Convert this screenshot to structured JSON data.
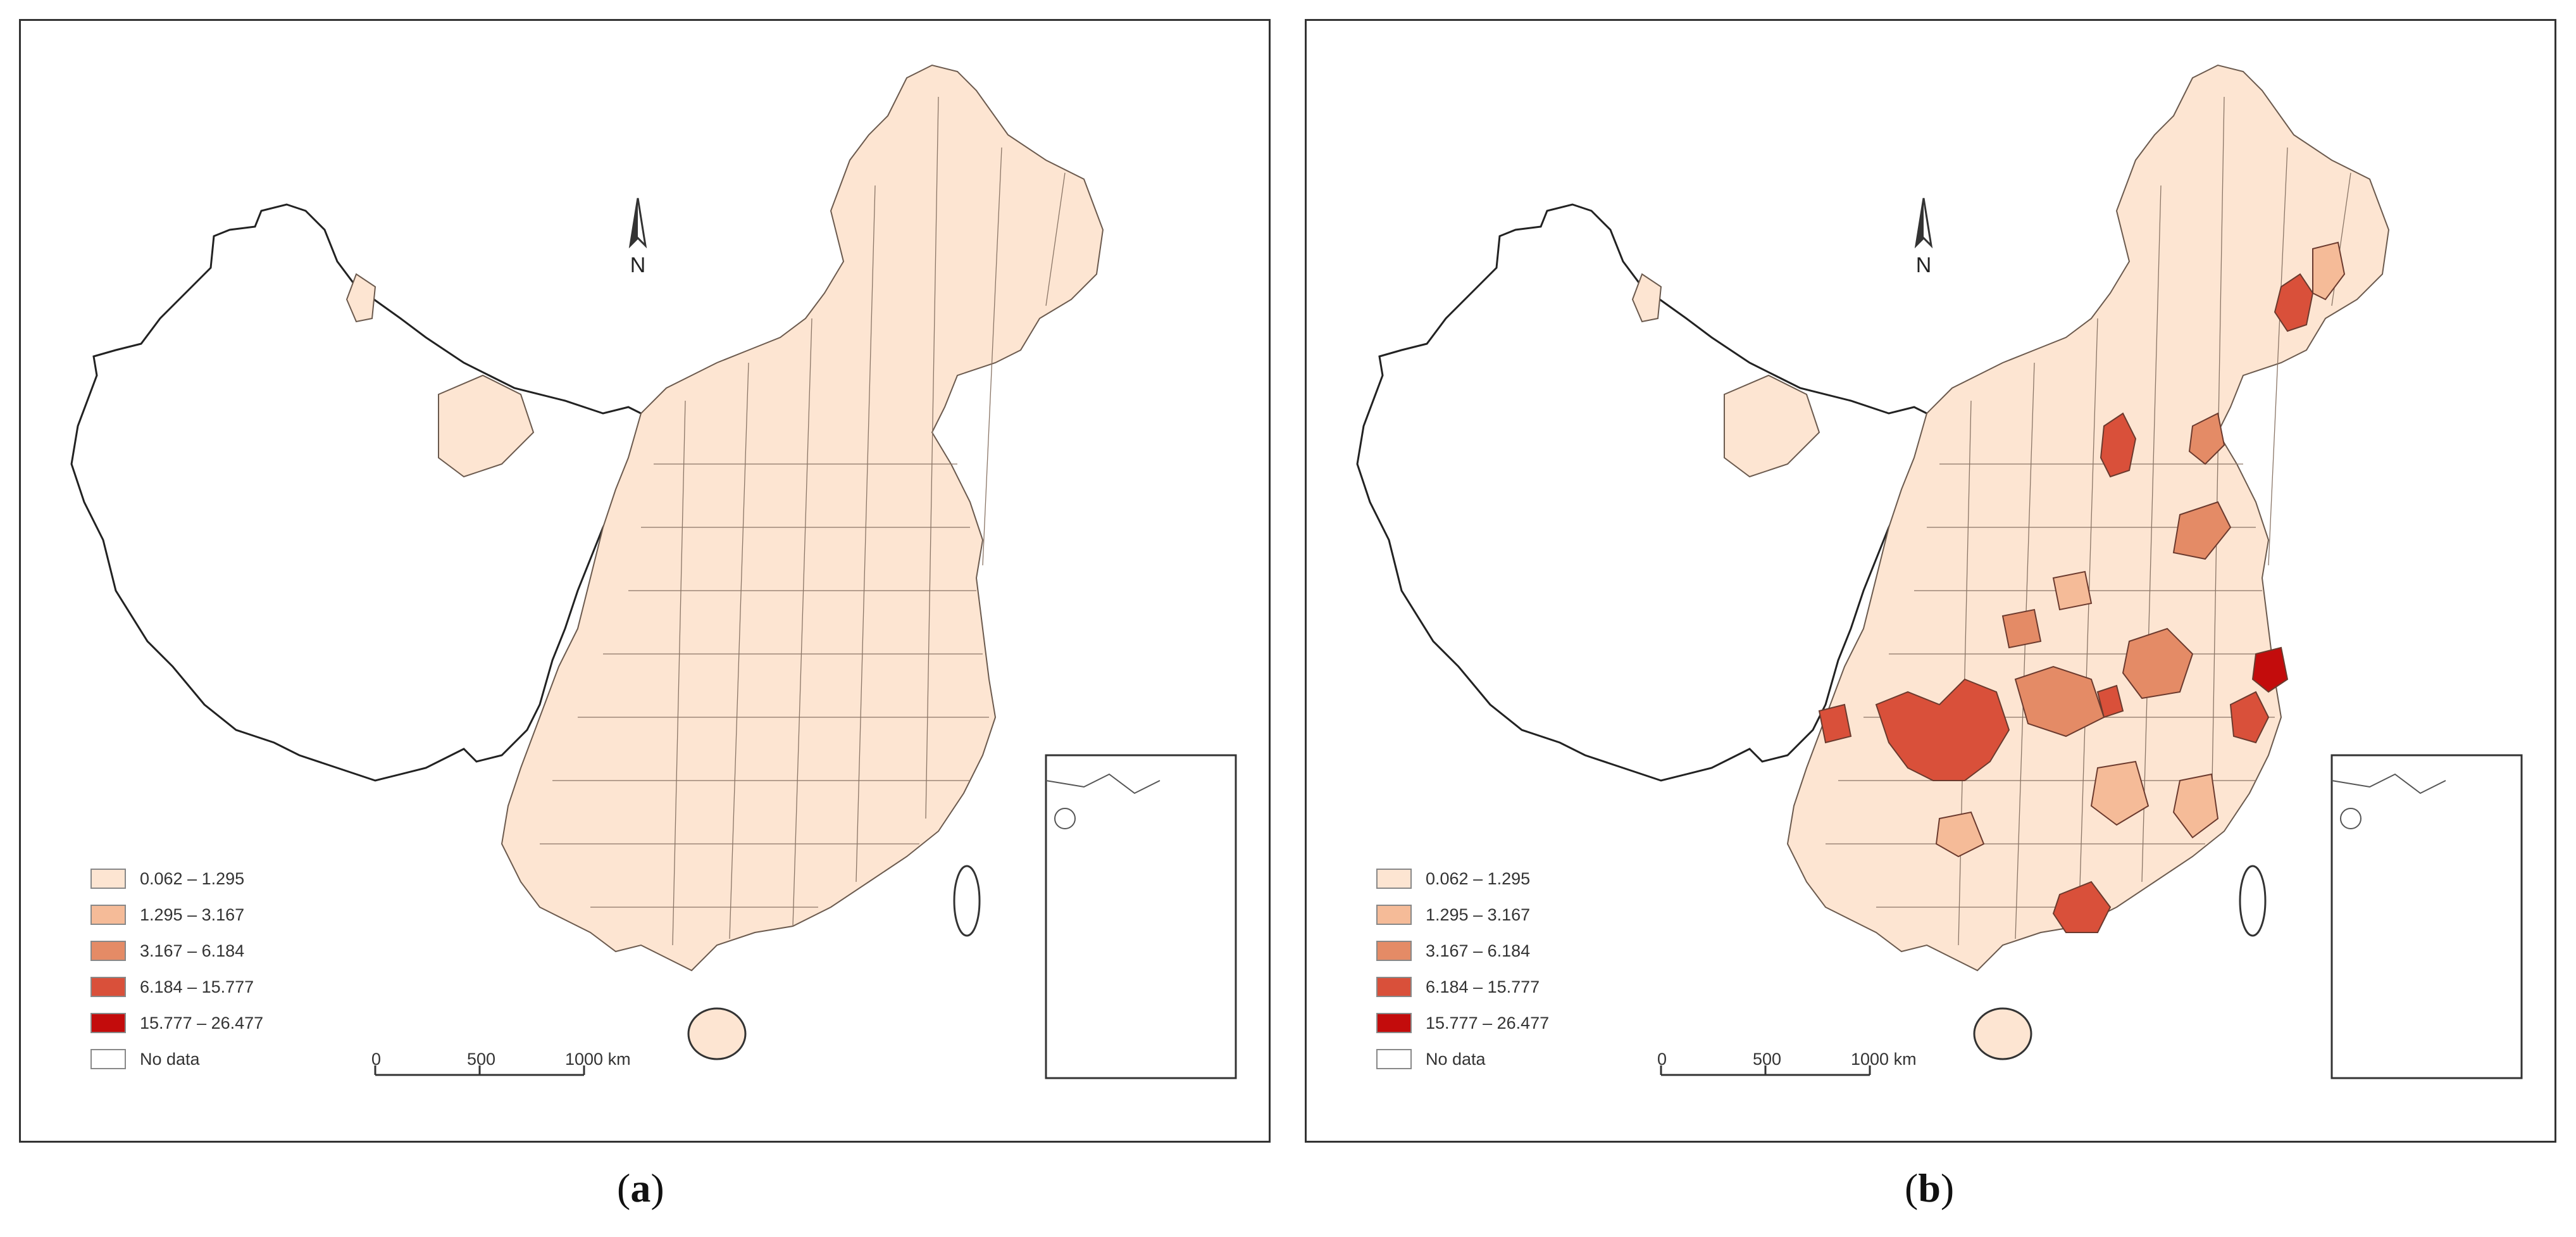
{
  "panels": [
    {
      "id": "a",
      "caption_letter": "a",
      "north_label": "N",
      "highlight_regions": []
    },
    {
      "id": "b",
      "caption_letter": "b",
      "north_label": "N",
      "highlight_regions": [
        {
          "name": "northeast-hotspot",
          "class": 3
        },
        {
          "name": "beijing-hotspot",
          "class": 3
        },
        {
          "name": "shandong-coast",
          "class": 2
        },
        {
          "name": "sichuan-chongqing",
          "class": 3
        },
        {
          "name": "hubei-central",
          "class": 2
        },
        {
          "name": "anhui-jiangsu",
          "class": 2
        },
        {
          "name": "shanghai-hotspot",
          "class": 4
        },
        {
          "name": "zhejiang-hotspot",
          "class": 3
        },
        {
          "name": "jiangxi-fujian",
          "class": 1
        },
        {
          "name": "guangdong-hotspot",
          "class": 3
        },
        {
          "name": "liaoning-coast",
          "class": 2
        }
      ]
    }
  ],
  "legend": {
    "classes": [
      {
        "label": "0.062 – 1.295",
        "color": "#fde5d2"
      },
      {
        "label": "1.295 – 3.167",
        "color": "#f5bb98"
      },
      {
        "label": "3.167 – 6.184",
        "color": "#e48b66"
      },
      {
        "label": "6.184 – 15.777",
        "color": "#d9503a"
      },
      {
        "label": "15.777 – 26.477",
        "color": "#c30c0c"
      }
    ],
    "no_data_label": "No data",
    "no_data_color": "#ffffff"
  },
  "scalebar": {
    "ticks": [
      "0",
      "500",
      "1000 km"
    ]
  },
  "colors": {
    "border": "#333333",
    "region_outline": "#6b5a4e",
    "base_fill": "#fde5d2"
  }
}
